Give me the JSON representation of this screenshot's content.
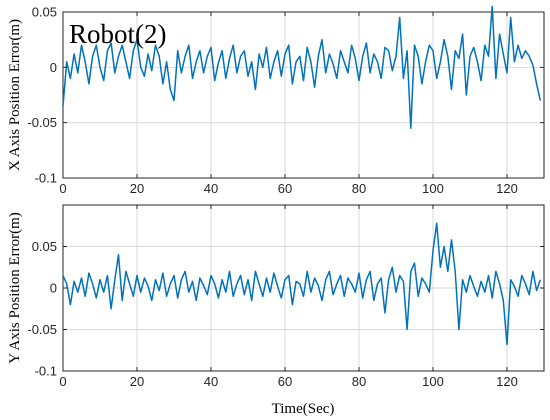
{
  "figure": {
    "annotation": "Robot(2)",
    "xlabel": "Time(Sec)"
  },
  "colors": {
    "series": "#0072BD",
    "grid": "#d9d9d9",
    "axis": "#262626"
  },
  "chart_data": [
    {
      "type": "line",
      "ylabel": "X Axis Position Error(m)",
      "xlim": [
        0,
        130
      ],
      "ylim": [
        -0.1,
        0.05
      ],
      "xticks": [
        0,
        20,
        40,
        60,
        80,
        100,
        120
      ],
      "yticks": [
        -0.1,
        -0.05,
        0,
        0.05
      ],
      "ytick_labels": [
        "-0.1",
        "-0.05",
        "0",
        "0.05"
      ],
      "grid": true,
      "series": [
        {
          "x": [
            0,
            1,
            2,
            3,
            4,
            5,
            6,
            7,
            8,
            9,
            10,
            11,
            12,
            13,
            14,
            15,
            16,
            17,
            18,
            19,
            20,
            21,
            22,
            23,
            24,
            25,
            26,
            27,
            28,
            29,
            30,
            31,
            32,
            33,
            34,
            35,
            36,
            37,
            38,
            39,
            40,
            41,
            42,
            43,
            44,
            45,
            46,
            47,
            48,
            49,
            50,
            51,
            52,
            53,
            54,
            55,
            56,
            57,
            58,
            59,
            60,
            61,
            62,
            63,
            64,
            65,
            66,
            67,
            68,
            69,
            70,
            71,
            72,
            73,
            74,
            75,
            76,
            77,
            78,
            79,
            80,
            81,
            82,
            83,
            84,
            85,
            86,
            87,
            88,
            89,
            90,
            91,
            92,
            93,
            94,
            95,
            96,
            97,
            98,
            99,
            100,
            101,
            102,
            103,
            104,
            105,
            106,
            107,
            108,
            109,
            110,
            111,
            112,
            113,
            114,
            115,
            116,
            117,
            118,
            119,
            120,
            121,
            122,
            123,
            124,
            125,
            126,
            127,
            128,
            129
          ],
          "y": [
            -0.035,
            0.005,
            -0.01,
            0.012,
            -0.005,
            0.02,
            0.005,
            -0.015,
            0.01,
            0.02,
            0,
            -0.012,
            0.015,
            0.022,
            -0.005,
            0.01,
            0.02,
            0.005,
            -0.01,
            0.015,
            0.025,
            0,
            -0.008,
            0.012,
            -0.003,
            0.02,
            0.01,
            -0.015,
            0.005,
            -0.02,
            -0.03,
            0.015,
            -0.005,
            0.01,
            0.02,
            -0.01,
            0.005,
            0.015,
            -0.005,
            0.01,
            0.018,
            -0.012,
            0.004,
            0.015,
            -0.01,
            0.008,
            0.02,
            -0.005,
            0.01,
            0.015,
            -0.008,
            0.005,
            -0.02,
            0.012,
            0,
            0.018,
            -0.01,
            0.005,
            0.015,
            -0.008,
            0.012,
            0.02,
            -0.015,
            0.005,
            0.01,
            -0.012,
            0.018,
            0.005,
            -0.018,
            0.01,
            0.025,
            -0.005,
            0.012,
            0.003,
            -0.01,
            0.015,
            0.005,
            -0.005,
            0.02,
            0.008,
            -0.012,
            0.01,
            0.022,
            -0.005,
            0.012,
            0.005,
            -0.01,
            0.018,
            0.015,
            -0.003,
            0.01,
            0.045,
            -0.01,
            0.015,
            -0.055,
            0.02,
            0.01,
            -0.015,
            0.005,
            0.02,
            0.015,
            -0.01,
            0.005,
            0.025,
            0.01,
            -0.02,
            0.015,
            0.008,
            0.03,
            -0.025,
            0.01,
            0.018,
            0.005,
            -0.012,
            0.02,
            0.01,
            0.055,
            -0.01,
            0.03,
            0.012,
            -0.005,
            0.045,
            0.005,
            0.02,
            0.008,
            0.015,
            0.01,
            0.002,
            -0.015,
            -0.03
          ]
        }
      ]
    },
    {
      "type": "line",
      "ylabel": "Y Axis Position Error(m)",
      "xlim": [
        0,
        130
      ],
      "ylim": [
        -0.1,
        0.1
      ],
      "xticks": [
        0,
        20,
        40,
        60,
        80,
        100,
        120
      ],
      "yticks": [
        -0.1,
        -0.05,
        0,
        0.05
      ],
      "ytick_labels": [
        "-0.1",
        "-0.05",
        "0",
        "0.05"
      ],
      "grid": true,
      "series": [
        {
          "x": [
            0,
            1,
            2,
            3,
            4,
            5,
            6,
            7,
            8,
            9,
            10,
            11,
            12,
            13,
            14,
            15,
            16,
            17,
            18,
            19,
            20,
            21,
            22,
            23,
            24,
            25,
            26,
            27,
            28,
            29,
            30,
            31,
            32,
            33,
            34,
            35,
            36,
            37,
            38,
            39,
            40,
            41,
            42,
            43,
            44,
            45,
            46,
            47,
            48,
            49,
            50,
            51,
            52,
            53,
            54,
            55,
            56,
            57,
            58,
            59,
            60,
            61,
            62,
            63,
            64,
            65,
            66,
            67,
            68,
            69,
            70,
            71,
            72,
            73,
            74,
            75,
            76,
            77,
            78,
            79,
            80,
            81,
            82,
            83,
            84,
            85,
            86,
            87,
            88,
            89,
            90,
            91,
            92,
            93,
            94,
            95,
            96,
            97,
            98,
            99,
            100,
            101,
            102,
            103,
            104,
            105,
            106,
            107,
            108,
            109,
            110,
            111,
            112,
            113,
            114,
            115,
            116,
            117,
            118,
            119,
            120,
            121,
            122,
            123,
            124,
            125,
            126,
            127,
            128,
            129
          ],
          "y": [
            0.015,
            0.005,
            -0.02,
            0.008,
            -0.005,
            0.012,
            -0.01,
            0.018,
            0.005,
            -0.012,
            0.01,
            -0.005,
            0.015,
            -0.025,
            0.01,
            0.04,
            -0.015,
            0.02,
            0.005,
            -0.01,
            0.015,
            -0.005,
            0.012,
            0.002,
            -0.015,
            0.01,
            -0.003,
            0.018,
            -0.01,
            0.005,
            0.015,
            -0.012,
            0.01,
            0.02,
            -0.005,
            0.008,
            -0.015,
            0.012,
            0.003,
            -0.008,
            0.015,
            0.005,
            -0.012,
            0.01,
            -0.005,
            0.02,
            -0.01,
            0.005,
            0.015,
            -0.008,
            0.01,
            -0.015,
            0.02,
            0.005,
            -0.01,
            0.012,
            -0.005,
            0.018,
            0.002,
            -0.012,
            0.01,
            0.015,
            -0.02,
            0.008,
            0.005,
            -0.01,
            0.02,
            -0.005,
            0.012,
            0.003,
            -0.015,
            0.01,
            0.02,
            -0.008,
            0.005,
            0.015,
            -0.01,
            0.012,
            0.005,
            -0.005,
            0.018,
            -0.012,
            0.01,
            0.02,
            -0.015,
            0.005,
            0.012,
            -0.03,
            0.01,
            0.025,
            -0.005,
            0.015,
            0.008,
            -0.05,
            0.02,
            0.03,
            -0.01,
            0.012,
            0.005,
            -0.005,
            0.045,
            0.078,
            0.025,
            0.05,
            0.02,
            0.058,
            0.02,
            -0.05,
            0.01,
            -0.005,
            0.015,
            0.002,
            -0.01,
            0.008,
            -0.005,
            0.015,
            -0.012,
            0.02,
            0.005,
            -0.015,
            -0.068,
            0.01,
            0.002,
            -0.01,
            0.015,
            0.005,
            -0.008,
            0.02,
            -0.003,
            0.01
          ]
        }
      ]
    }
  ]
}
